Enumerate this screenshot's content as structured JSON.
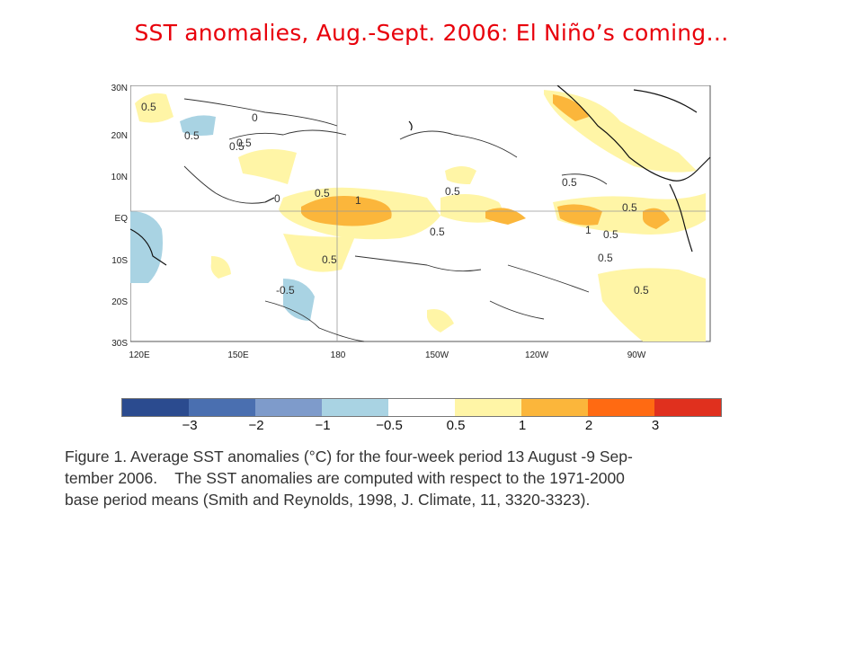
{
  "slide_title": "SST anomalies, Aug.-Sept. 2006: El Niño’s coming…",
  "map": {
    "lat_labels": [
      "30N",
      "20N",
      "10N",
      "EQ",
      "10S",
      "20S",
      "30S"
    ],
    "lon_labels": [
      "120E",
      "150E",
      "180",
      "150W",
      "120W",
      "90W"
    ],
    "contour_labels": [
      "0.5",
      "0",
      "0.5",
      "0",
      "0.5",
      "0.5",
      "1",
      "0.5",
      "0.5",
      "0.5",
      "1",
      "0.5",
      "0.5",
      "0.5",
      "-0.5",
      "0.5",
      "0.5",
      "0.5"
    ]
  },
  "colorbar": {
    "colors": [
      "#2b4b8f",
      "#4a6fb0",
      "#7e9bcb",
      "#a9d3e3",
      "#ffffff",
      "#fff5a6",
      "#fbb63b",
      "#ff6a12",
      "#e0301e"
    ],
    "labels": [
      "−3",
      "−2",
      "−1",
      "−0.5",
      "0.5",
      "1",
      "2",
      "3"
    ]
  },
  "caption": {
    "line1": "Figure 1. Average SST anomalies (°C) for the four-week period 13 August -9 Sep-",
    "line2": "tember 2006.    The SST anomalies are computed with respect to the 1971-2000",
    "line3": "base period means (Smith and Reynolds, 1998, J. Climate, 11, 3320-3323)."
  }
}
